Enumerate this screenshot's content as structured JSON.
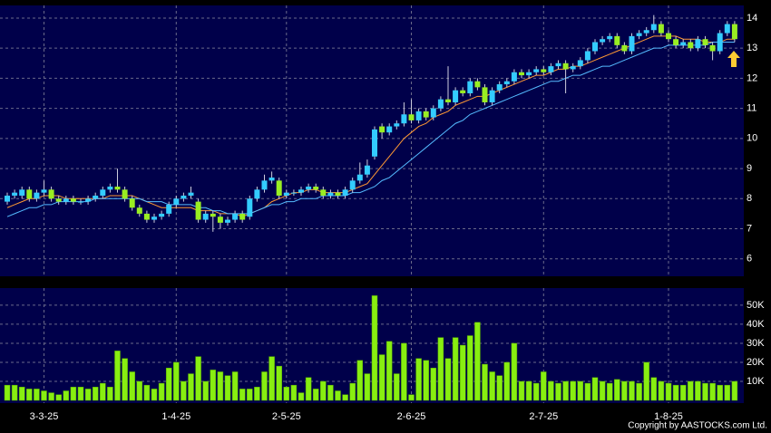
{
  "chart_data": {
    "type": "candlestick",
    "categories": [
      null,
      null,
      null,
      null,
      null,
      "3-3-25",
      null,
      null,
      null,
      null,
      null,
      null,
      null,
      null,
      null,
      null,
      null,
      null,
      null,
      null,
      null,
      null,
      null,
      "1-4-25",
      null,
      null,
      null,
      null,
      null,
      null,
      null,
      null,
      null,
      null,
      null,
      null,
      null,
      null,
      "2-5-25",
      null,
      null,
      null,
      null,
      null,
      null,
      null,
      null,
      null,
      null,
      null,
      null,
      null,
      null,
      null,
      null,
      "2-6-25",
      null,
      null,
      null,
      null,
      null,
      null,
      null,
      null,
      null,
      null,
      null,
      null,
      null,
      null,
      null,
      null,
      null,
      "2-7-25",
      null,
      null,
      null,
      null,
      null,
      null,
      null,
      null,
      null,
      null,
      null,
      null,
      null,
      null,
      null,
      null,
      "1-8-25",
      null,
      null,
      null,
      null,
      null,
      null,
      null,
      null,
      null
    ],
    "open": [
      7.9,
      8.1,
      8.1,
      8.3,
      8.0,
      8.2,
      8.3,
      8.0,
      7.9,
      8.0,
      7.9,
      7.9,
      8.0,
      8.1,
      8.3,
      8.4,
      8.3,
      8.0,
      7.7,
      7.5,
      7.3,
      7.4,
      7.5,
      7.8,
      8.0,
      8.1,
      7.9,
      7.3,
      7.5,
      7.4,
      7.2,
      7.3,
      7.5,
      7.4,
      8.0,
      8.3,
      8.6,
      8.6,
      8.1,
      8.2,
      8.2,
      8.3,
      8.4,
      8.3,
      8.1,
      8.2,
      8.1,
      8.3,
      8.6,
      8.8,
      9.4,
      10.4,
      10.2,
      10.4,
      10.5,
      10.8,
      10.6,
      10.9,
      10.7,
      11.0,
      11.3,
      11.2,
      11.6,
      11.5,
      11.9,
      11.7,
      11.2,
      11.6,
      11.8,
      11.9,
      12.2,
      12.1,
      12.2,
      12.3,
      12.2,
      12.4,
      12.5,
      12.3,
      12.4,
      12.6,
      12.9,
      13.2,
      13.3,
      13.4,
      13.1,
      12.9,
      13.4,
      13.5,
      13.6,
      13.8,
      13.5,
      13.3,
      13.1,
      13.2,
      13.0,
      13.3,
      13.1,
      12.9,
      13.5,
      13.8
    ],
    "high": [
      8.2,
      8.3,
      8.4,
      8.4,
      8.3,
      8.6,
      8.4,
      8.1,
      8.1,
      8.1,
      8.0,
      8.1,
      8.2,
      8.4,
      8.5,
      9.0,
      8.4,
      8.1,
      7.8,
      7.6,
      7.5,
      7.6,
      7.9,
      8.1,
      8.2,
      8.4,
      8.0,
      7.6,
      7.6,
      7.5,
      7.4,
      7.6,
      7.6,
      8.1,
      8.4,
      8.8,
      8.9,
      8.7,
      8.3,
      8.3,
      8.4,
      8.5,
      8.5,
      8.4,
      8.3,
      8.3,
      8.4,
      8.7,
      9.2,
      9.3,
      10.4,
      10.5,
      10.5,
      10.6,
      11.2,
      11.3,
      11.0,
      11.0,
      11.1,
      11.4,
      12.4,
      11.7,
      11.7,
      12.0,
      12.0,
      11.8,
      11.7,
      11.9,
      12.0,
      12.3,
      12.3,
      12.3,
      12.4,
      12.4,
      12.5,
      12.6,
      12.6,
      12.5,
      12.7,
      13.0,
      13.3,
      13.4,
      13.5,
      13.5,
      13.2,
      13.5,
      13.6,
      13.7,
      14.1,
      13.9,
      13.6,
      13.4,
      13.3,
      13.3,
      13.4,
      13.4,
      13.2,
      13.6,
      13.9,
      13.9
    ],
    "low": [
      7.8,
      8.0,
      8.0,
      7.9,
      7.9,
      8.1,
      7.9,
      7.8,
      7.8,
      7.8,
      7.8,
      7.8,
      7.9,
      8.0,
      8.2,
      8.2,
      7.9,
      7.6,
      7.4,
      7.2,
      7.2,
      7.3,
      7.4,
      7.7,
      7.9,
      8.0,
      7.2,
      7.2,
      6.9,
      7.0,
      7.1,
      7.2,
      7.2,
      7.3,
      7.9,
      8.2,
      8.5,
      8.0,
      8.0,
      8.1,
      8.1,
      8.2,
      8.2,
      8.0,
      8.0,
      8.0,
      8.0,
      8.2,
      8.5,
      8.7,
      9.3,
      10.0,
      10.1,
      10.3,
      10.4,
      10.5,
      10.5,
      10.6,
      10.6,
      10.9,
      11.1,
      11.1,
      11.4,
      11.4,
      11.6,
      11.1,
      11.1,
      11.5,
      11.7,
      11.8,
      12.0,
      12.0,
      12.1,
      12.1,
      12.1,
      12.3,
      11.5,
      12.2,
      12.3,
      12.5,
      12.8,
      13.1,
      13.2,
      13.0,
      12.8,
      12.8,
      13.3,
      13.4,
      13.5,
      13.4,
      13.2,
      13.0,
      13.0,
      12.9,
      12.9,
      13.0,
      12.6,
      12.8,
      13.4,
      13.2
    ],
    "close": [
      8.1,
      8.2,
      8.3,
      8.0,
      8.2,
      8.3,
      8.0,
      7.9,
      8.0,
      7.9,
      7.9,
      8.0,
      8.1,
      8.3,
      8.4,
      8.3,
      8.0,
      7.7,
      7.5,
      7.3,
      7.4,
      7.5,
      7.8,
      8.0,
      8.1,
      8.2,
      7.3,
      7.5,
      7.4,
      7.2,
      7.3,
      7.5,
      7.3,
      8.0,
      8.3,
      8.6,
      8.7,
      8.1,
      8.2,
      8.2,
      8.3,
      8.4,
      8.3,
      8.1,
      8.2,
      8.1,
      8.3,
      8.6,
      8.8,
      9.1,
      10.3,
      10.2,
      10.4,
      10.5,
      10.8,
      10.6,
      10.9,
      10.7,
      11.0,
      11.3,
      11.2,
      11.6,
      11.5,
      11.9,
      11.7,
      11.2,
      11.6,
      11.8,
      11.9,
      12.2,
      12.1,
      12.2,
      12.3,
      12.2,
      12.4,
      12.5,
      12.3,
      12.4,
      12.6,
      12.9,
      13.2,
      13.3,
      13.4,
      13.1,
      12.9,
      13.4,
      13.5,
      13.6,
      13.8,
      13.5,
      13.3,
      13.1,
      13.2,
      13.0,
      13.3,
      13.1,
      12.9,
      13.5,
      13.8,
      13.3
    ],
    "up_color": "#33ccff",
    "down_color": "#99ee22",
    "series": [
      {
        "color": "#ff9933",
        "values": [
          7.7,
          7.8,
          7.9,
          8.0,
          8.0,
          8.1,
          8.1,
          8.1,
          8.0,
          8.0,
          8.0,
          8.0,
          8.0,
          8.0,
          8.1,
          8.1,
          8.1,
          8.1,
          8.0,
          7.9,
          7.8,
          7.7,
          7.7,
          7.7,
          7.7,
          7.7,
          7.6,
          7.6,
          7.6,
          7.5,
          7.5,
          7.5,
          7.4,
          7.5,
          7.6,
          7.7,
          7.9,
          8.0,
          8.1,
          8.2,
          8.2,
          8.3,
          8.3,
          8.2,
          8.2,
          8.2,
          8.2,
          8.3,
          8.4,
          8.5,
          8.8,
          9.1,
          9.4,
          9.7,
          10.0,
          10.2,
          10.4,
          10.5,
          10.7,
          10.8,
          10.9,
          11.1,
          11.2,
          11.3,
          11.4,
          11.4,
          11.5,
          11.6,
          11.7,
          11.8,
          11.9,
          12.0,
          12.1,
          12.1,
          12.2,
          12.3,
          12.3,
          12.4,
          12.4,
          12.5,
          12.6,
          12.7,
          12.8,
          12.9,
          13.0,
          13.1,
          13.2,
          13.3,
          13.4,
          13.4,
          13.4,
          13.4,
          13.3,
          13.3,
          13.3,
          13.2,
          13.2,
          13.2,
          13.3,
          13.3
        ]
      },
      {
        "color": "#55bbff",
        "values": [
          7.4,
          7.5,
          7.6,
          7.7,
          7.7,
          7.8,
          7.8,
          7.9,
          7.9,
          7.9,
          7.9,
          7.9,
          8.0,
          8.0,
          8.0,
          8.0,
          8.0,
          8.0,
          8.0,
          7.9,
          7.9,
          7.9,
          7.8,
          7.8,
          7.8,
          7.8,
          7.7,
          7.7,
          7.6,
          7.6,
          7.5,
          7.5,
          7.5,
          7.5,
          7.6,
          7.7,
          7.8,
          7.8,
          7.9,
          7.9,
          8.0,
          8.0,
          8.0,
          8.1,
          8.1,
          8.1,
          8.1,
          8.2,
          8.2,
          8.3,
          8.4,
          8.6,
          8.7,
          8.9,
          9.1,
          9.3,
          9.5,
          9.7,
          9.9,
          10.1,
          10.3,
          10.5,
          10.6,
          10.8,
          10.9,
          11.0,
          11.1,
          11.2,
          11.3,
          11.4,
          11.5,
          11.6,
          11.7,
          11.8,
          11.9,
          11.9,
          12.0,
          12.1,
          12.1,
          12.2,
          12.3,
          12.4,
          12.4,
          12.5,
          12.6,
          12.7,
          12.8,
          12.9,
          13.0,
          13.0,
          13.1,
          13.1,
          13.1,
          13.1,
          13.1,
          13.1,
          13.2,
          13.2,
          13.2,
          13.2
        ]
      }
    ],
    "ylim": [
      5.42,
      14.42
    ],
    "yticks": [
      6,
      7,
      8,
      9,
      10,
      11,
      12,
      13,
      14
    ],
    "grid": true,
    "volume": {
      "color": "#88ee11",
      "values": [
        8000,
        8000,
        7000,
        6000,
        6000,
        5000,
        4000,
        3000,
        5000,
        7000,
        7000,
        6000,
        7000,
        9000,
        7000,
        26000,
        22000,
        15000,
        10000,
        8000,
        6000,
        9000,
        17000,
        20000,
        10000,
        14000,
        23000,
        10000,
        16000,
        15000,
        13000,
        15000,
        6000,
        6000,
        7000,
        15000,
        23000,
        18000,
        7000,
        8000,
        4000,
        12000,
        6000,
        10000,
        8000,
        5000,
        3000,
        9000,
        21000,
        14000,
        55000,
        24000,
        31000,
        14000,
        30000,
        3000,
        22000,
        21000,
        17000,
        33000,
        22000,
        33000,
        29000,
        34000,
        41000,
        19000,
        15000,
        13000,
        20000,
        30000,
        10000,
        10000,
        9000,
        15000,
        10000,
        9000,
        10000,
        10000,
        10000,
        9000,
        12000,
        10000,
        9000,
        11000,
        10000,
        10000,
        9000,
        20000,
        12000,
        10000,
        9000,
        8000,
        8000,
        10000,
        10000,
        9000,
        9000,
        8000,
        8000,
        10000
      ],
      "ylim": [
        0,
        59000
      ],
      "yticks": [
        {
          "value": 10000,
          "label": "10K"
        },
        {
          "value": 20000,
          "label": "20K"
        },
        {
          "value": 30000,
          "label": "30K"
        },
        {
          "value": 40000,
          "label": "40K"
        },
        {
          "value": 50000,
          "label": "50K"
        }
      ]
    },
    "copyright": "Copyright by AASTOCKS.com Ltd."
  }
}
